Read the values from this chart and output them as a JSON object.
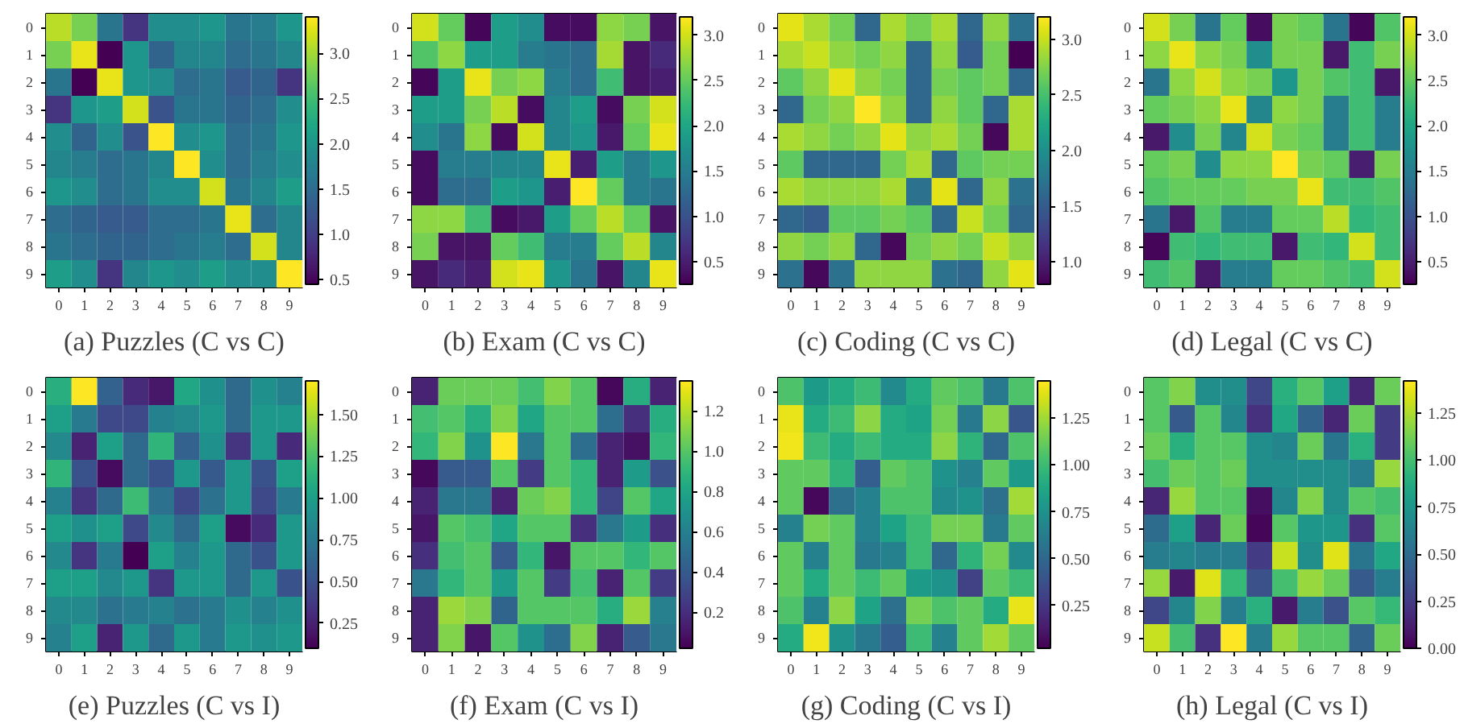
{
  "chart_data": [
    {
      "type": "heatmap",
      "title": "(a) Puzzles (C vs C)",
      "categories": [
        "0",
        "1",
        "2",
        "3",
        "4",
        "5",
        "6",
        "7",
        "8",
        "9"
      ],
      "y_categories": [
        "0",
        "1",
        "2",
        "3",
        "4",
        "5",
        "6",
        "7",
        "8",
        "9"
      ],
      "clim": [
        0.45,
        3.4
      ],
      "cticks": [
        0.5,
        {
          "value": 1.0,
          "label": "1.0"
        },
        1.5,
        {
          "value": 2.0,
          "label": "2.0"
        },
        2.5,
        {
          "value": 3.0,
          "label": "3.0"
        }
      ],
      "cells": [
        [
          3.1,
          2.8,
          1.6,
          0.9,
          1.9,
          1.9,
          2.0,
          1.6,
          1.7,
          2.0
        ],
        [
          2.8,
          3.3,
          0.45,
          2.0,
          1.4,
          1.8,
          1.8,
          1.5,
          1.6,
          1.8
        ],
        [
          1.6,
          0.45,
          3.3,
          2.0,
          1.9,
          1.5,
          1.6,
          1.3,
          1.4,
          0.9
        ],
        [
          0.9,
          2.0,
          2.1,
          3.2,
          1.2,
          1.6,
          1.6,
          1.4,
          1.5,
          1.9
        ],
        [
          1.9,
          1.4,
          1.9,
          1.2,
          3.4,
          1.9,
          2.0,
          1.5,
          1.6,
          2.0
        ],
        [
          1.8,
          1.7,
          1.5,
          1.6,
          1.8,
          3.4,
          1.9,
          1.5,
          1.7,
          1.9
        ],
        [
          2.0,
          1.9,
          1.5,
          1.6,
          1.9,
          1.9,
          3.2,
          1.6,
          1.8,
          2.1
        ],
        [
          1.5,
          1.4,
          1.3,
          1.3,
          1.5,
          1.5,
          1.6,
          3.3,
          1.5,
          1.8
        ],
        [
          1.6,
          1.5,
          1.4,
          1.4,
          1.5,
          1.6,
          1.7,
          1.5,
          3.2,
          1.8
        ],
        [
          2.1,
          1.9,
          0.9,
          1.8,
          2.0,
          1.9,
          2.1,
          1.9,
          1.9,
          3.4
        ]
      ]
    },
    {
      "type": "heatmap",
      "title": "(b) Exam (C vs C)",
      "categories": [
        "0",
        "1",
        "2",
        "3",
        "4",
        "5",
        "6",
        "7",
        "8",
        "9"
      ],
      "y_categories": [
        "0",
        "1",
        "2",
        "3",
        "4",
        "5",
        "6",
        "7",
        "8",
        "9"
      ],
      "clim": [
        0.25,
        3.2
      ],
      "cticks": [
        0.5,
        {
          "value": 1.0,
          "label": "1.0"
        },
        1.5,
        {
          "value": 2.0,
          "label": "2.0"
        },
        2.5,
        {
          "value": 3.0,
          "label": "3.0"
        }
      ],
      "cells": [
        [
          3.0,
          2.5,
          0.3,
          1.9,
          1.7,
          0.35,
          0.35,
          2.7,
          2.6,
          0.4
        ],
        [
          2.4,
          2.7,
          1.9,
          1.9,
          1.5,
          1.4,
          1.3,
          2.8,
          0.4,
          0.6
        ],
        [
          0.3,
          1.9,
          3.1,
          2.6,
          2.7,
          1.5,
          1.3,
          2.3,
          0.4,
          0.5
        ],
        [
          1.9,
          1.9,
          2.6,
          2.9,
          0.35,
          1.6,
          1.9,
          0.35,
          2.6,
          3.0
        ],
        [
          1.7,
          1.4,
          2.7,
          0.35,
          3.0,
          1.6,
          1.8,
          0.45,
          2.5,
          3.1
        ],
        [
          0.35,
          1.5,
          1.5,
          1.6,
          1.6,
          3.1,
          0.5,
          1.9,
          1.5,
          1.8
        ],
        [
          0.35,
          1.3,
          1.3,
          1.9,
          1.8,
          0.5,
          3.2,
          2.5,
          1.5,
          1.4
        ],
        [
          2.7,
          2.7,
          2.3,
          0.35,
          0.45,
          1.9,
          2.5,
          2.9,
          2.5,
          0.4
        ],
        [
          2.6,
          0.4,
          0.4,
          2.5,
          2.3,
          1.5,
          1.5,
          2.5,
          2.9,
          1.6
        ],
        [
          0.4,
          0.6,
          0.5,
          3.0,
          3.1,
          1.8,
          1.4,
          0.4,
          1.6,
          3.1
        ]
      ]
    },
    {
      "type": "heatmap",
      "title": "(c) Coding (C vs C)",
      "categories": [
        "0",
        "1",
        "2",
        "3",
        "4",
        "5",
        "6",
        "7",
        "8",
        "9"
      ],
      "y_categories": [
        "0",
        "1",
        "2",
        "3",
        "4",
        "5",
        "6",
        "7",
        "8",
        "9"
      ],
      "clim": [
        0.8,
        3.2
      ],
      "cticks": [
        {
          "value": 1.0,
          "label": "1.0"
        },
        1.5,
        {
          "value": 2.0,
          "label": "2.0"
        },
        2.5,
        {
          "value": 3.0,
          "label": "3.0"
        }
      ],
      "cells": [
        [
          3.1,
          2.9,
          2.7,
          1.6,
          2.9,
          2.7,
          2.9,
          1.6,
          2.8,
          1.7
        ],
        [
          2.9,
          3.0,
          2.8,
          2.7,
          2.8,
          1.6,
          2.8,
          1.5,
          2.7,
          0.8
        ],
        [
          2.6,
          2.8,
          3.1,
          2.8,
          2.7,
          1.6,
          2.7,
          2.6,
          2.7,
          1.6
        ],
        [
          1.6,
          2.7,
          2.8,
          3.2,
          2.8,
          1.6,
          2.8,
          2.6,
          1.6,
          2.9
        ],
        [
          2.9,
          2.8,
          2.7,
          2.8,
          3.1,
          2.8,
          2.9,
          2.7,
          0.85,
          2.9
        ],
        [
          2.6,
          1.6,
          1.6,
          1.6,
          2.7,
          2.9,
          1.6,
          2.6,
          2.7,
          2.7
        ],
        [
          2.9,
          2.8,
          2.8,
          2.8,
          2.9,
          1.7,
          3.1,
          1.6,
          2.8,
          1.7
        ],
        [
          1.6,
          1.5,
          2.6,
          2.6,
          2.7,
          2.6,
          1.6,
          3.0,
          2.7,
          1.6
        ],
        [
          2.8,
          2.7,
          2.8,
          1.6,
          0.85,
          2.7,
          2.8,
          2.7,
          3.0,
          2.8
        ],
        [
          1.7,
          0.85,
          1.7,
          2.8,
          2.8,
          2.8,
          1.7,
          1.6,
          2.8,
          3.1
        ]
      ]
    },
    {
      "type": "heatmap",
      "title": "(d) Legal (C vs C)",
      "categories": [
        "0",
        "1",
        "2",
        "3",
        "4",
        "5",
        "6",
        "7",
        "8",
        "9"
      ],
      "y_categories": [
        "0",
        "1",
        "2",
        "3",
        "4",
        "5",
        "6",
        "7",
        "8",
        "9"
      ],
      "clim": [
        0.25,
        3.2
      ],
      "cticks": [
        0.5,
        {
          "value": 1.0,
          "label": "1.0"
        },
        1.5,
        {
          "value": 2.0,
          "label": "2.0"
        },
        2.5,
        {
          "value": 3.0,
          "label": "3.0"
        }
      ],
      "cells": [
        [
          3.0,
          2.6,
          1.4,
          2.5,
          0.35,
          2.6,
          2.5,
          1.4,
          0.3,
          2.4
        ],
        [
          2.7,
          3.1,
          2.7,
          2.6,
          1.7,
          2.6,
          2.6,
          0.45,
          2.3,
          2.6
        ],
        [
          1.4,
          2.7,
          3.0,
          2.7,
          2.6,
          1.8,
          2.6,
          2.4,
          2.3,
          0.45
        ],
        [
          2.5,
          2.6,
          2.7,
          3.1,
          1.6,
          2.7,
          2.6,
          1.5,
          2.3,
          1.5
        ],
        [
          0.45,
          1.7,
          2.6,
          1.6,
          3.0,
          2.6,
          2.5,
          1.5,
          2.3,
          1.5
        ],
        [
          2.5,
          2.6,
          1.7,
          2.7,
          2.7,
          3.2,
          2.6,
          2.5,
          0.5,
          2.6
        ],
        [
          2.4,
          2.5,
          2.5,
          2.5,
          2.6,
          2.6,
          3.1,
          2.3,
          2.3,
          2.4
        ],
        [
          1.4,
          0.45,
          2.4,
          1.5,
          1.5,
          2.5,
          2.5,
          2.9,
          2.2,
          2.3
        ],
        [
          0.3,
          2.3,
          2.2,
          2.3,
          2.3,
          0.45,
          2.3,
          2.2,
          3.0,
          2.3
        ],
        [
          2.3,
          2.4,
          0.45,
          1.5,
          1.5,
          2.5,
          2.5,
          2.4,
          2.3,
          3.0
        ]
      ]
    },
    {
      "type": "heatmap",
      "title": "(e) Puzzles (C vs I)",
      "categories": [
        "0",
        "1",
        "2",
        "3",
        "4",
        "5",
        "6",
        "7",
        "8",
        "9"
      ],
      "y_categories": [
        "0",
        "1",
        "2",
        "3",
        "4",
        "5",
        "6",
        "7",
        "8",
        "9"
      ],
      "clim": [
        0.1,
        1.7
      ],
      "cticks": [
        {
          "value": 0.25,
          "label": "0.25"
        },
        {
          "value": 0.5,
          "label": "0.50"
        },
        {
          "value": 0.75,
          "label": "0.75"
        },
        {
          "value": 1.0,
          "label": "1.00"
        },
        {
          "value": 1.25,
          "label": "1.25"
        },
        {
          "value": 1.5,
          "label": "1.50"
        }
      ],
      "cells": [
        [
          1.1,
          1.7,
          0.6,
          0.3,
          0.2,
          1.05,
          0.9,
          0.65,
          0.9,
          0.8
        ],
        [
          1.0,
          0.75,
          0.45,
          0.45,
          0.8,
          0.85,
          0.95,
          0.65,
          0.95,
          0.95
        ],
        [
          0.85,
          0.25,
          1.0,
          0.65,
          1.15,
          0.6,
          0.9,
          0.35,
          0.95,
          0.3
        ],
        [
          1.15,
          0.5,
          0.15,
          0.65,
          0.5,
          0.95,
          0.55,
          0.95,
          0.5,
          1.0
        ],
        [
          0.8,
          0.35,
          0.65,
          1.2,
          0.7,
          0.45,
          0.7,
          0.95,
          0.45,
          0.75
        ],
        [
          1.0,
          0.9,
          1.0,
          0.45,
          0.85,
          0.65,
          1.0,
          0.15,
          0.3,
          0.95
        ],
        [
          0.85,
          0.35,
          0.75,
          0.1,
          1.0,
          0.8,
          0.95,
          0.65,
          0.5,
          0.95
        ],
        [
          1.0,
          1.0,
          0.85,
          0.95,
          0.35,
          0.95,
          0.95,
          0.65,
          0.95,
          0.5
        ],
        [
          0.85,
          0.85,
          0.7,
          0.75,
          0.8,
          0.7,
          0.75,
          0.9,
          0.8,
          0.9
        ],
        [
          0.8,
          1.0,
          0.25,
          0.95,
          0.65,
          0.95,
          0.75,
          0.95,
          0.9,
          0.95
        ]
      ]
    },
    {
      "type": "heatmap",
      "title": "(f) Exam (C vs I)",
      "categories": [
        "0",
        "1",
        "2",
        "3",
        "4",
        "5",
        "6",
        "7",
        "8",
        "9"
      ],
      "y_categories": [
        "0",
        "1",
        "2",
        "3",
        "4",
        "5",
        "6",
        "7",
        "8",
        "9"
      ],
      "clim": [
        0.02,
        1.35
      ],
      "cticks": [
        0.2,
        0.4,
        0.6,
        0.8,
        {
          "value": 1.0,
          "label": "1.0"
        },
        1.2
      ],
      "cells": [
        [
          0.15,
          1.05,
          1.05,
          1.05,
          0.95,
          1.1,
          1.0,
          0.05,
          0.85,
          0.15
        ],
        [
          0.95,
          1.0,
          0.85,
          1.1,
          0.8,
          1.0,
          1.0,
          0.5,
          0.2,
          0.85
        ],
        [
          0.9,
          1.1,
          0.7,
          1.35,
          0.55,
          1.0,
          0.5,
          0.15,
          0.08,
          0.9
        ],
        [
          0.05,
          0.4,
          0.4,
          1.0,
          0.25,
          1.0,
          0.9,
          0.15,
          0.75,
          0.35
        ],
        [
          0.15,
          0.55,
          0.55,
          0.15,
          1.05,
          1.1,
          0.9,
          0.3,
          1.0,
          0.8
        ],
        [
          0.1,
          1.0,
          0.95,
          0.8,
          1.0,
          1.0,
          0.2,
          0.55,
          0.75,
          0.2
        ],
        [
          0.2,
          0.95,
          1.0,
          0.4,
          0.9,
          0.1,
          1.0,
          1.0,
          0.9,
          1.0
        ],
        [
          0.55,
          0.9,
          1.0,
          0.75,
          1.0,
          0.25,
          0.95,
          0.15,
          1.0,
          0.25
        ],
        [
          0.15,
          1.15,
          1.1,
          0.45,
          1.0,
          1.0,
          1.0,
          0.85,
          1.15,
          0.6
        ],
        [
          0.15,
          1.1,
          0.1,
          1.0,
          0.7,
          0.5,
          1.1,
          0.15,
          0.4,
          0.55
        ]
      ]
    },
    {
      "type": "heatmap",
      "title": "(g) Coding (C vs I)",
      "categories": [
        "0",
        "1",
        "2",
        "3",
        "4",
        "5",
        "6",
        "7",
        "8",
        "9"
      ],
      "y_categories": [
        "0",
        "1",
        "2",
        "3",
        "4",
        "5",
        "6",
        "7",
        "8",
        "9"
      ],
      "clim": [
        0.02,
        1.45
      ],
      "cticks": [
        {
          "value": 0.25,
          "label": "0.25"
        },
        {
          "value": 0.5,
          "label": "0.50"
        },
        {
          "value": 0.75,
          "label": "0.75"
        },
        {
          "value": 1.0,
          "label": "1.00"
        },
        {
          "value": 1.25,
          "label": "1.25"
        }
      ],
      "cells": [
        [
          1.05,
          0.8,
          0.9,
          1.0,
          0.7,
          0.9,
          1.1,
          1.05,
          0.6,
          1.05
        ],
        [
          1.4,
          0.9,
          1.0,
          1.2,
          0.9,
          0.85,
          1.15,
          0.6,
          1.2,
          0.4
        ],
        [
          1.42,
          1.0,
          0.9,
          1.0,
          0.9,
          0.9,
          1.2,
          0.95,
          0.5,
          1.05
        ],
        [
          1.1,
          1.1,
          0.95,
          0.45,
          1.1,
          1.05,
          0.75,
          0.65,
          1.1,
          0.8
        ],
        [
          1.1,
          0.05,
          0.55,
          0.65,
          1.05,
          1.05,
          0.7,
          0.75,
          0.55,
          1.25
        ],
        [
          0.65,
          1.15,
          1.1,
          0.65,
          0.85,
          1.0,
          1.15,
          1.15,
          0.6,
          1.1
        ],
        [
          1.1,
          0.65,
          1.1,
          0.6,
          0.65,
          1.0,
          0.5,
          0.95,
          1.15,
          0.7
        ],
        [
          1.1,
          0.9,
          1.1,
          1.0,
          1.1,
          0.8,
          0.75,
          0.3,
          1.1,
          1.0
        ],
        [
          1.05,
          0.65,
          1.2,
          0.85,
          0.55,
          1.15,
          1.05,
          1.1,
          0.9,
          1.4
        ],
        [
          0.9,
          1.42,
          0.75,
          0.6,
          0.45,
          1.0,
          0.65,
          1.1,
          1.25,
          1.1
        ]
      ]
    },
    {
      "type": "heatmap",
      "title": "(h) Legal (C vs I)",
      "categories": [
        "0",
        "1",
        "2",
        "3",
        "4",
        "5",
        "6",
        "7",
        "8",
        "9"
      ],
      "y_categories": [
        "0",
        "1",
        "2",
        "3",
        "4",
        "5",
        "6",
        "7",
        "8",
        "9"
      ],
      "clim": [
        0.0,
        1.42
      ],
      "cticks": [
        {
          "value": 0.0,
          "label": "0.00"
        },
        {
          "value": 0.25,
          "label": "0.25"
        },
        {
          "value": 0.5,
          "label": "0.50"
        },
        {
          "value": 0.75,
          "label": "0.75"
        },
        {
          "value": 1.0,
          "label": "1.00"
        },
        {
          "value": 1.25,
          "label": "1.25"
        }
      ],
      "cells": [
        [
          1.05,
          1.15,
          0.7,
          0.7,
          0.3,
          0.9,
          1.05,
          0.8,
          0.15,
          1.1
        ],
        [
          1.05,
          0.4,
          1.05,
          0.65,
          0.2,
          0.85,
          0.45,
          0.15,
          1.1,
          0.25
        ],
        [
          1.1,
          0.9,
          1.05,
          1.05,
          0.7,
          0.65,
          1.1,
          0.55,
          0.9,
          0.25
        ],
        [
          1.0,
          1.1,
          1.05,
          1.1,
          0.7,
          0.7,
          0.7,
          0.7,
          0.6,
          1.2
        ],
        [
          0.15,
          1.2,
          1.05,
          1.05,
          0.05,
          0.65,
          1.15,
          0.7,
          1.05,
          1.0
        ],
        [
          0.5,
          0.8,
          0.15,
          1.1,
          0.02,
          1.05,
          0.75,
          0.75,
          0.2,
          1.05
        ],
        [
          0.6,
          0.65,
          0.6,
          0.6,
          0.25,
          1.3,
          0.7,
          1.35,
          0.55,
          0.85
        ],
        [
          1.2,
          0.1,
          1.35,
          0.95,
          0.35,
          1.0,
          1.2,
          1.1,
          0.4,
          0.6
        ],
        [
          0.3,
          0.65,
          1.15,
          0.6,
          0.9,
          0.1,
          0.6,
          0.35,
          1.05,
          0.95
        ],
        [
          1.3,
          1.0,
          0.2,
          1.42,
          0.6,
          1.2,
          1.05,
          1.05,
          0.45,
          1.1
        ]
      ]
    }
  ]
}
